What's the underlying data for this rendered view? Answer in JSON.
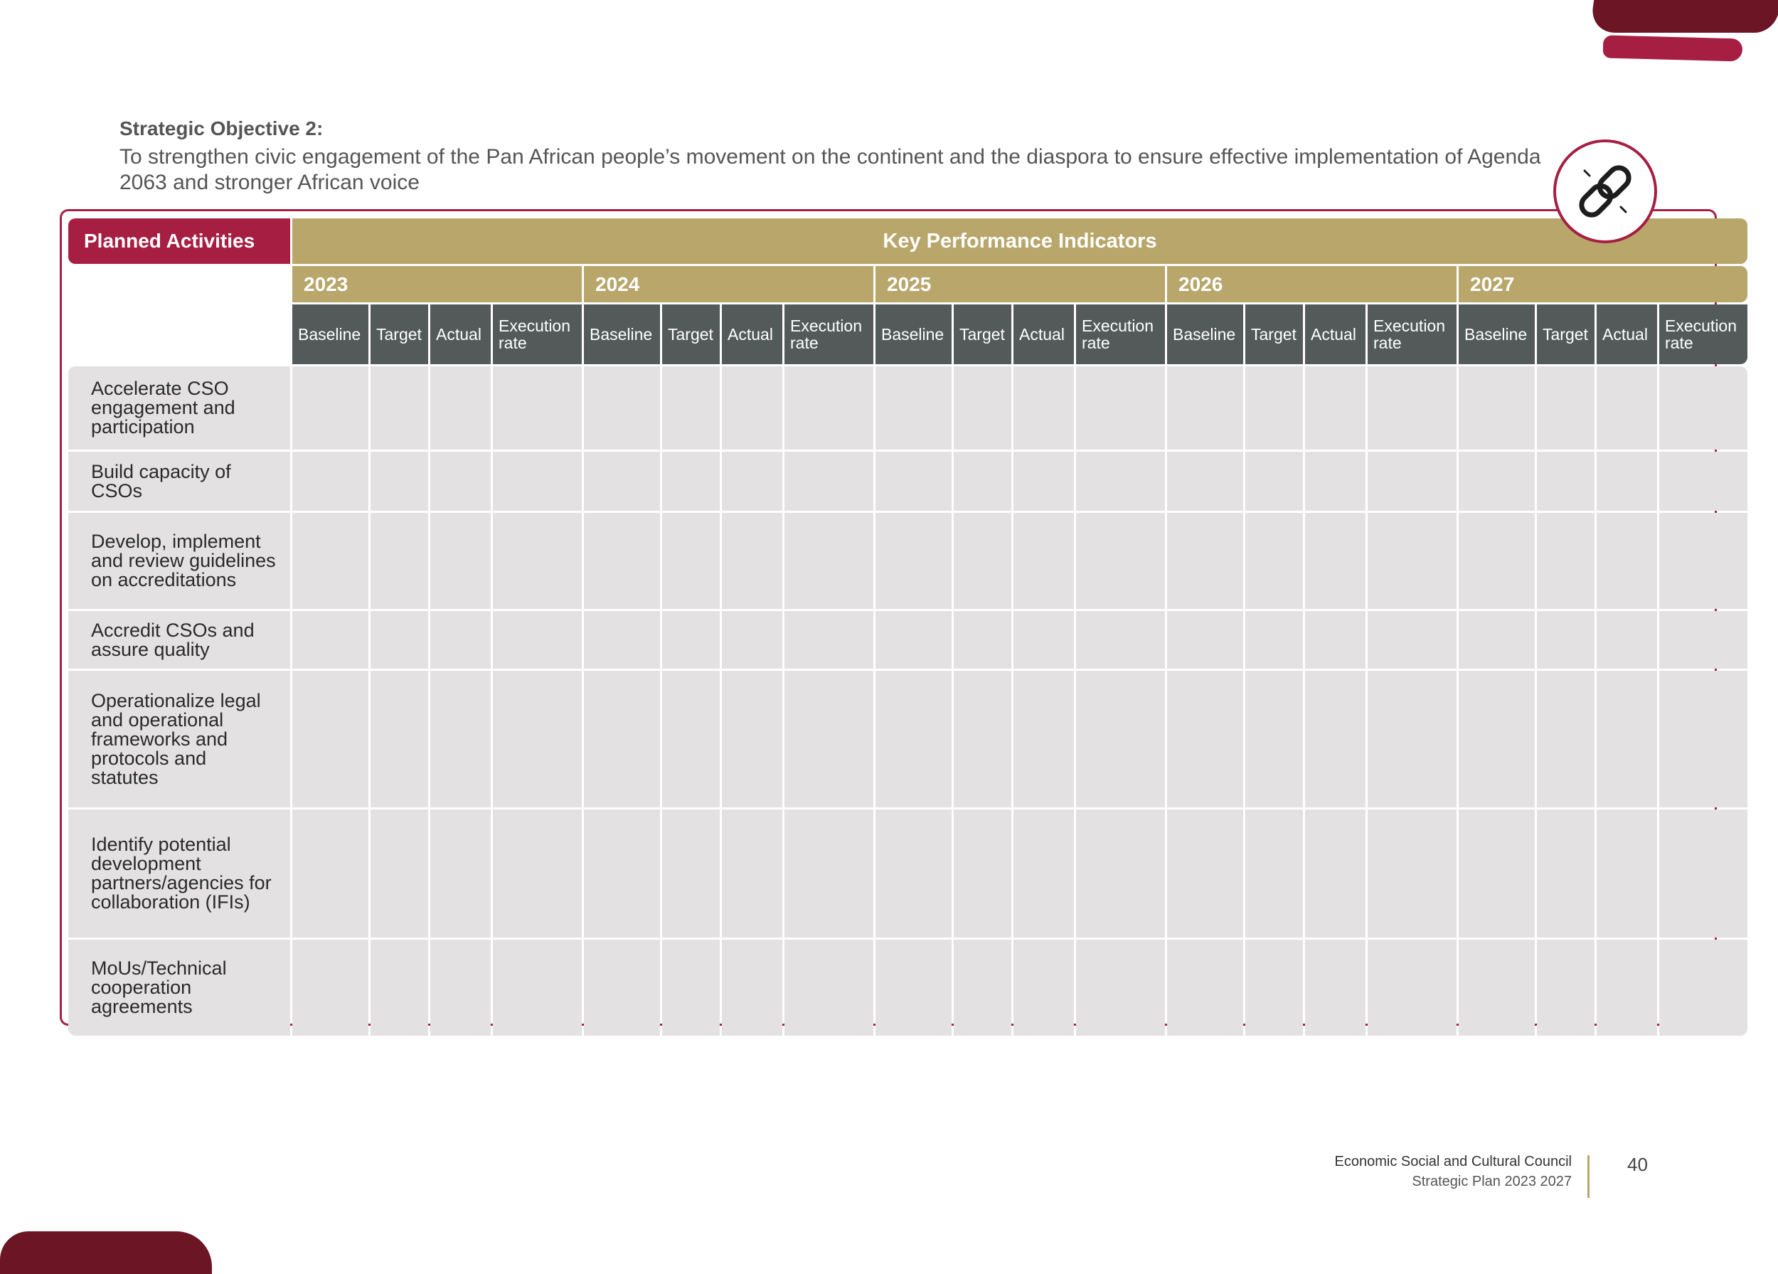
{
  "objective": {
    "title": "Strategic Objective 2:",
    "description": "To strengthen civic engagement of the Pan African people’s movement on the continent and the diaspora to ensure effective implementation of Agenda 2063 and stronger African voice"
  },
  "table": {
    "planned_header": "Planned Activities",
    "kpi_header": "Key Performance Indicators",
    "years": [
      "2023",
      "2024",
      "2025",
      "2026",
      "2027"
    ],
    "subheaders": [
      "Baseline",
      "Target",
      "Actual",
      "Execution rate"
    ],
    "activities": [
      "Accelerate CSO engagement and participation",
      "Build capacity of CSOs",
      "Develop, implement and review guidelines on accreditations",
      "Accredit CSOs and assure quality",
      "Operationalize legal and operational frameworks and protocols and statutes",
      "Identify potential development partners/agencies for collaboration (IFIs)",
      "MoUs/Technical cooperation agreements"
    ]
  },
  "badge": {
    "icon": "chain-link-icon",
    "color": "#a61f43"
  },
  "colors": {
    "maroon": "#a61f43",
    "gold": "#b9a66b",
    "slate": "#545a5a",
    "cell": "#e3e1e2"
  },
  "footer": {
    "organization": "Economic Social and Cultural Council",
    "plan": "Strategic Plan 2023 2027",
    "page_number": "40"
  }
}
